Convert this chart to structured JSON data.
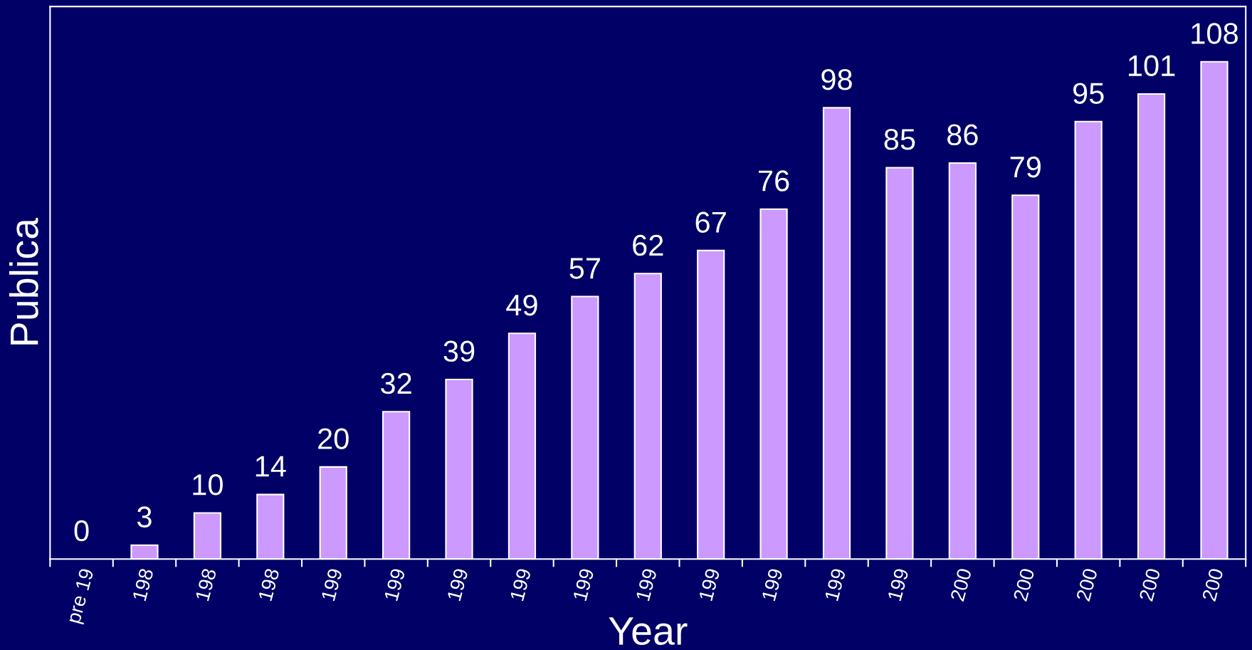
{
  "chart_data": {
    "type": "bar",
    "xlabel": "Year",
    "ylabel": "Publica",
    "categories": [
      "pre 19",
      "198",
      "198",
      "198",
      "199",
      "199",
      "199",
      "199",
      "199",
      "199",
      "199",
      "199",
      "199",
      "199",
      "200",
      "200",
      "200",
      "200",
      "200"
    ],
    "values": [
      0,
      3,
      10,
      14,
      20,
      32,
      39,
      49,
      57,
      62,
      67,
      76,
      98,
      85,
      86,
      79,
      95,
      101,
      108
    ],
    "color": "#cc99ff",
    "ylim": [
      0,
      120
    ],
    "data_labels": true,
    "grid": false,
    "legend": false,
    "tick_labels": "x"
  }
}
